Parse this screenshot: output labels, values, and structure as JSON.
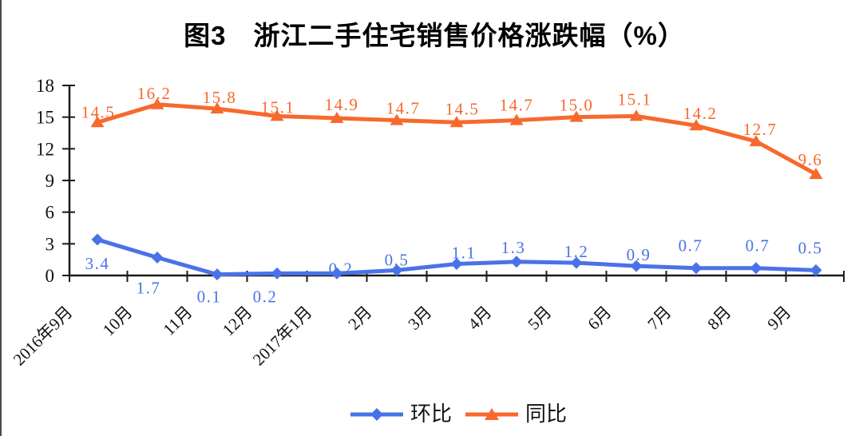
{
  "chart_data": {
    "type": "line",
    "title": "图3　浙江二手住宅销售价格涨跌幅（%）",
    "categories": [
      "2016年9月",
      "10月",
      "11月",
      "12月",
      "2017年1月",
      "2月",
      "3月",
      "4月",
      "5月",
      "6月",
      "7月",
      "8月",
      "9月"
    ],
    "series": [
      {
        "name": "环比",
        "marker": "diamond",
        "color": "#4a72e8",
        "values": [
          3.4,
          1.7,
          0.1,
          0.2,
          0.2,
          0.5,
          1.1,
          1.3,
          1.2,
          0.9,
          0.7,
          0.7,
          0.5
        ],
        "label_offsets": [
          [
            0,
            37
          ],
          [
            -11,
            45
          ],
          [
            -10,
            35
          ],
          [
            -15,
            36
          ],
          [
            5,
            1
          ],
          [
            0,
            -6
          ],
          [
            9,
            -7
          ],
          [
            -4,
            -11
          ],
          [
            0,
            -7
          ],
          [
            3,
            -7
          ],
          [
            -7,
            -21
          ],
          [
            2,
            -21
          ],
          [
            -7,
            -21
          ]
        ]
      },
      {
        "name": "同比",
        "marker": "triangle",
        "color": "#f7692d",
        "values": [
          14.5,
          16.2,
          15.8,
          15.1,
          14.9,
          14.7,
          14.5,
          14.7,
          15.0,
          15.1,
          14.2,
          12.7,
          9.6
        ],
        "label_offsets": [
          [
            1,
            -6
          ],
          [
            -4,
            -7
          ],
          [
            3,
            -7
          ],
          [
            1,
            -4
          ],
          [
            6,
            -10
          ],
          [
            8,
            -8
          ],
          [
            7,
            -10
          ],
          [
            0,
            -12
          ],
          [
            0,
            -8
          ],
          [
            -2,
            -14
          ],
          [
            5,
            -8
          ],
          [
            5,
            -8
          ],
          [
            -7,
            -11
          ]
        ]
      }
    ],
    "ylim": [
      0,
      18
    ],
    "yticks": [
      0,
      3,
      6,
      9,
      12,
      15,
      18
    ],
    "grid": false,
    "legend_position": "bottom",
    "axis_color": "#1a1a1a",
    "label_decimals": 1
  }
}
